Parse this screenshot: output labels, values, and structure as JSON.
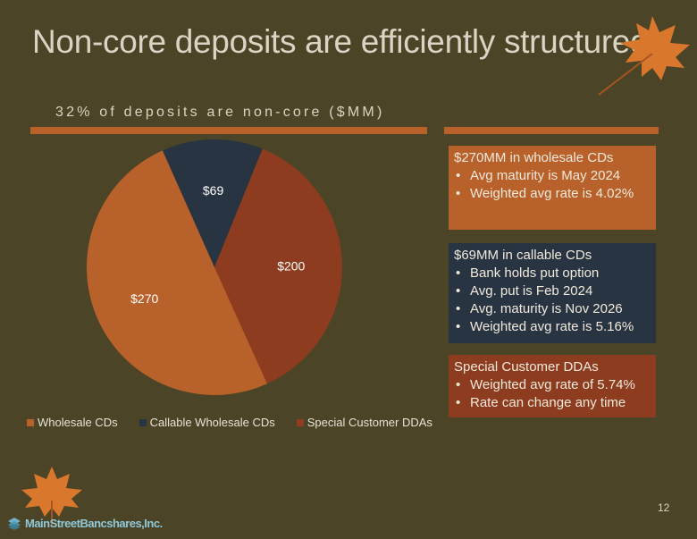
{
  "slide": {
    "title": "Non-core deposits are efficiently structured",
    "subtitle": "32% of deposits are non-core ($MM)",
    "page_number": "12",
    "logo_text": "MainStreetBancshares,Inc."
  },
  "colors": {
    "background": "#4b4426",
    "wholesale": "#b9612a",
    "callable": "#283442",
    "special": "#8d3c1f",
    "rule": "#b9612a"
  },
  "chart_data": {
    "type": "pie",
    "title": "32% of deposits are non-core ($MM)",
    "categories": [
      "Wholesale CDs",
      "Callable Wholesale CDs",
      "Special Customer DDAs"
    ],
    "values": [
      270,
      69,
      200
    ],
    "data_labels": [
      "$270",
      "$69",
      "$200"
    ],
    "colors": [
      "#b9612a",
      "#283442",
      "#8d3c1f"
    ],
    "legend_position": "bottom"
  },
  "boxes": [
    {
      "heading": "$270MM in wholesale CDs",
      "bullets": [
        "Avg maturity is May 2024",
        "Weighted avg rate is 4.02%"
      ]
    },
    {
      "heading": "$69MM in callable CDs",
      "bullets": [
        "Bank holds put option",
        "Avg. put is Feb 2024",
        "Avg. maturity is Nov 2026",
        "Weighted avg rate is 5.16%"
      ]
    },
    {
      "heading": "Special Customer DDAs",
      "bullets": [
        "Weighted avg rate of 5.74%",
        "Rate can change any time"
      ]
    }
  ],
  "icons": {
    "leaf_top": "maple-leaf-icon",
    "leaf_bottom": "maple-leaf-icon",
    "logo": "stacked-chevrons-icon"
  }
}
